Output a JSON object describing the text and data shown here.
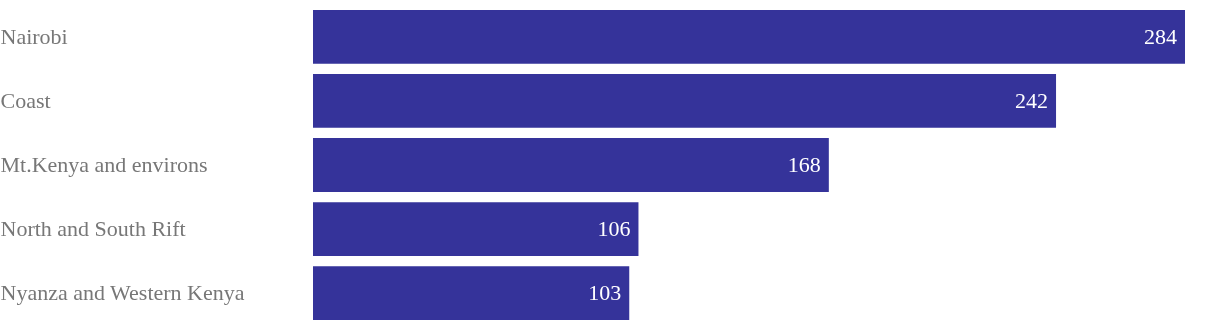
{
  "chart_data": {
    "type": "bar",
    "orientation": "horizontal",
    "categories": [
      "Nairobi",
      "Coast",
      "Mt.Kenya and environs",
      "North and South Rift",
      "Nyanza and Western Kenya"
    ],
    "values": [
      284,
      242,
      168,
      106,
      103
    ],
    "color": "#35339a",
    "data_labels": true
  }
}
